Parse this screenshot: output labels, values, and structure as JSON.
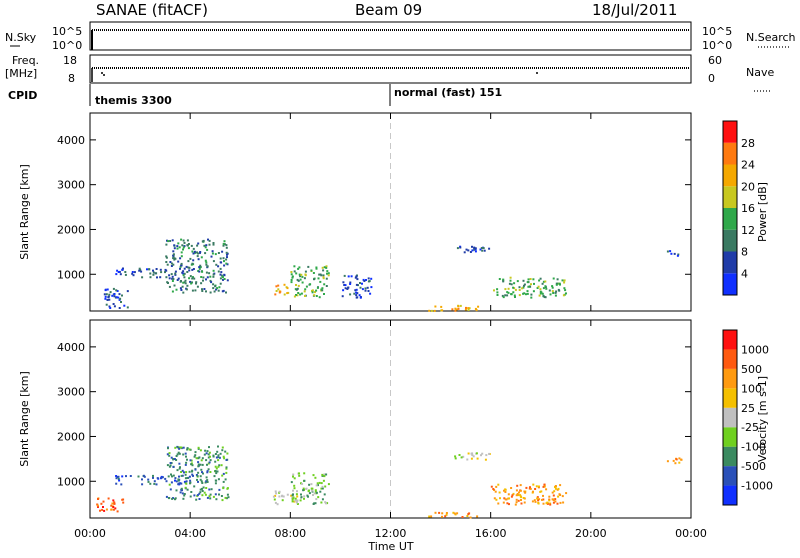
{
  "header": {
    "station": "SANAE (fitACF)",
    "beam": "Beam 09",
    "date": "18/Jul/2011"
  },
  "top_panels": {
    "nsky_label": "N.Sky",
    "nsky_ticks": [
      "10^5",
      "10^0"
    ],
    "nsearch_label": "N.Search",
    "nsearch_ticks": [
      "10^5",
      "10^0"
    ],
    "freq_label": "Freq.",
    "freq_unit": "[MHz]",
    "freq_ticks": [
      "18",
      "8"
    ],
    "nave_label": "Nave",
    "nave_ticks": [
      "60",
      "0"
    ],
    "cpid_label": "CPID",
    "cpid_segments": [
      {
        "label": "themis 3300",
        "start_hour": 0.0
      },
      {
        "label": "normal (fast) 151",
        "start_hour": 12.0
      }
    ]
  },
  "chart_data": [
    {
      "type": "heatmap",
      "name": "power",
      "title": "",
      "ylabel": "Slant Range [km]",
      "xlabel": "",
      "ylim": [
        180,
        4600
      ],
      "xlim_hours": [
        0,
        24
      ],
      "y_ticks": [
        1000,
        2000,
        3000,
        4000
      ],
      "colorbar": {
        "label": "Power [dB]",
        "ticks": [
          "4",
          "8",
          "12",
          "16",
          "20",
          "24",
          "28"
        ],
        "colors": [
          "#1030ff",
          "#203ca8",
          "#3a7a62",
          "#2fa84a",
          "#c8c820",
          "#f5a800",
          "#ff7a10",
          "#ff1010"
        ]
      },
      "echo_regions": [
        {
          "t_start": 0.5,
          "t_end": 1.5,
          "r_min": 250,
          "r_max": 700,
          "level": 1
        },
        {
          "t_start": 1.0,
          "t_end": 4.0,
          "r_min": 950,
          "r_max": 1150,
          "level": 1
        },
        {
          "t_start": 3.0,
          "t_end": 5.5,
          "r_min": 600,
          "r_max": 1800,
          "level": 2
        },
        {
          "t_start": 7.3,
          "t_end": 8.0,
          "r_min": 550,
          "r_max": 800,
          "level": 5
        },
        {
          "t_start": 8.0,
          "t_end": 9.5,
          "r_min": 500,
          "r_max": 1200,
          "level": 3
        },
        {
          "t_start": 10.0,
          "t_end": 11.2,
          "r_min": 500,
          "r_max": 1000,
          "level": 1
        },
        {
          "t_start": 13.5,
          "t_end": 15.5,
          "r_min": 200,
          "r_max": 320,
          "level": 5
        },
        {
          "t_start": 16.0,
          "t_end": 19.0,
          "r_min": 500,
          "r_max": 950,
          "level": 3
        },
        {
          "t_start": 14.5,
          "t_end": 16.0,
          "r_min": 1500,
          "r_max": 1650,
          "level": 1
        },
        {
          "t_start": 23.0,
          "t_end": 23.6,
          "r_min": 1400,
          "r_max": 1550,
          "level": 1
        }
      ]
    },
    {
      "type": "heatmap",
      "name": "velocity",
      "title": "",
      "ylabel": "Slant Range [km]",
      "xlabel": "Time UT",
      "ylim": [
        180,
        4600
      ],
      "xlim_hours": [
        0,
        24
      ],
      "y_ticks": [
        1000,
        2000,
        3000,
        4000
      ],
      "x_ticks": [
        "00:00",
        "04:00",
        "08:00",
        "12:00",
        "16:00",
        "20:00",
        "00:00"
      ],
      "colorbar": {
        "label": "Velocity [m s-1]",
        "ticks": [
          "1000",
          "500",
          "100",
          "25",
          "-25",
          "-100",
          "-500",
          "-1000"
        ],
        "colors": [
          "#1030ff",
          "#2a50b8",
          "#3a8a60",
          "#6fd020",
          "#c0c0c0",
          "#f5c000",
          "#ff9a10",
          "#ff5a10",
          "#ff1010"
        ]
      },
      "echo_regions": [
        {
          "t_start": 0.2,
          "t_end": 1.3,
          "r_min": 350,
          "r_max": 650,
          "level": 7
        },
        {
          "t_start": 1.0,
          "t_end": 4.0,
          "r_min": 950,
          "r_max": 1150,
          "level": 1
        },
        {
          "t_start": 3.0,
          "t_end": 5.5,
          "r_min": 600,
          "r_max": 1800,
          "level": 2
        },
        {
          "t_start": 7.3,
          "t_end": 8.3,
          "r_min": 500,
          "r_max": 800,
          "level": 4
        },
        {
          "t_start": 8.0,
          "t_end": 9.5,
          "r_min": 500,
          "r_max": 1200,
          "level": 3
        },
        {
          "t_start": 13.5,
          "t_end": 15.5,
          "r_min": 200,
          "r_max": 320,
          "level": 6
        },
        {
          "t_start": 16.0,
          "t_end": 19.0,
          "r_min": 500,
          "r_max": 950,
          "level": 6
        },
        {
          "t_start": 14.5,
          "t_end": 16.0,
          "r_min": 1500,
          "r_max": 1650,
          "level": 4
        },
        {
          "t_start": 23.0,
          "t_end": 23.6,
          "r_min": 1400,
          "r_max": 1550,
          "level": 6
        }
      ]
    }
  ],
  "colors": {
    "frame": "#000000",
    "noon_line": "#c8c8c8"
  }
}
